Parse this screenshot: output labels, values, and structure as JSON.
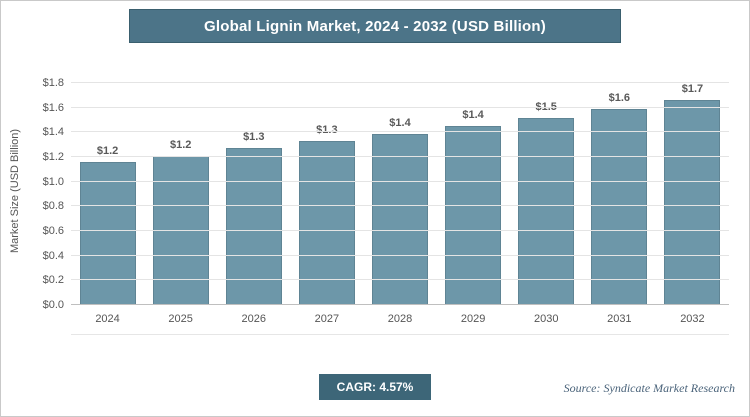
{
  "page": {
    "title": "Global Lignin Market, 2024 - 2032 (USD Billion)",
    "cagr_label": "CAGR: 4.57%",
    "source": "Source: Syndicate Market Research"
  },
  "chart_data": {
    "type": "bar",
    "title": "Global Lignin Market, 2024 - 2032 (USD Billion)",
    "categories": [
      "2024",
      "2025",
      "2026",
      "2027",
      "2028",
      "2029",
      "2030",
      "2031",
      "2032"
    ],
    "values": [
      1.16,
      1.21,
      1.27,
      1.33,
      1.39,
      1.45,
      1.52,
      1.59,
      1.66
    ],
    "value_labels": [
      "$1.2",
      "$1.2",
      "$1.3",
      "$1.3",
      "$1.4",
      "$1.4",
      "$1.5",
      "$1.6",
      "$1.7"
    ],
    "xlabel": "",
    "ylabel": "Market Size (USD Billion)",
    "ylim": [
      0,
      1.8
    ],
    "yticks": [
      0.0,
      0.2,
      0.4,
      0.6,
      0.8,
      1.0,
      1.2,
      1.4,
      1.6,
      1.8
    ],
    "ytick_labels": [
      "$0.0",
      "$0.2",
      "$0.4",
      "$0.6",
      "$0.8",
      "$1.0",
      "$1.2",
      "$1.4",
      "$1.6",
      "$1.8"
    ],
    "grid": true,
    "legend": false,
    "cagr": "4.57%"
  },
  "colors": {
    "header_bg": "#4c7488",
    "bar": "#6d97a9",
    "badge_bg": "#3d6678"
  }
}
